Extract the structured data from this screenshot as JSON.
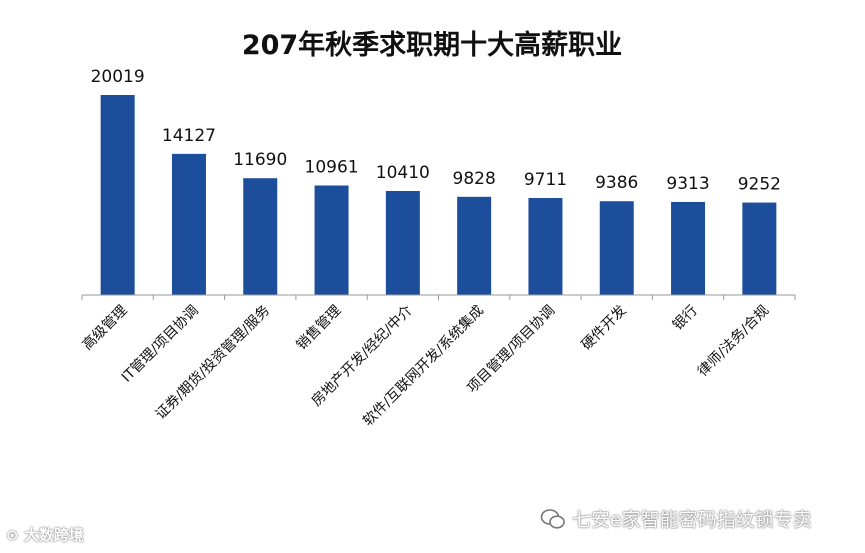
{
  "chart_data": {
    "type": "bar",
    "title": "207年秋季求职期十大高薪职业",
    "categories": [
      "高级管理",
      "IT管理/项目协调",
      "证券/期货/投资管理/服务",
      "销售管理",
      "房地产开发/经纪/中介",
      "软件/互联网开发/系统集成",
      "项目管理/项目协调",
      "硬件开发",
      "银行",
      "律师/法务/合规"
    ],
    "values": [
      20019,
      14127,
      11690,
      10961,
      10410,
      9828,
      9711,
      9386,
      9313,
      9252
    ],
    "value_labels": [
      "20019",
      "14127",
      "11690",
      "10961",
      "10410",
      "9828",
      "9711",
      "9386",
      "9313",
      "9252"
    ],
    "ylim": [
      0,
      20019
    ],
    "grid": false,
    "legend": "none",
    "bar_color": "#1c4e9b",
    "axis_color": "#999999"
  },
  "watermarks": {
    "left": "大数跨境",
    "right": "七安e家智能密码指纹锁专卖",
    "right_icon": "wechat-icon",
    "left_icon": "logo-icon"
  }
}
